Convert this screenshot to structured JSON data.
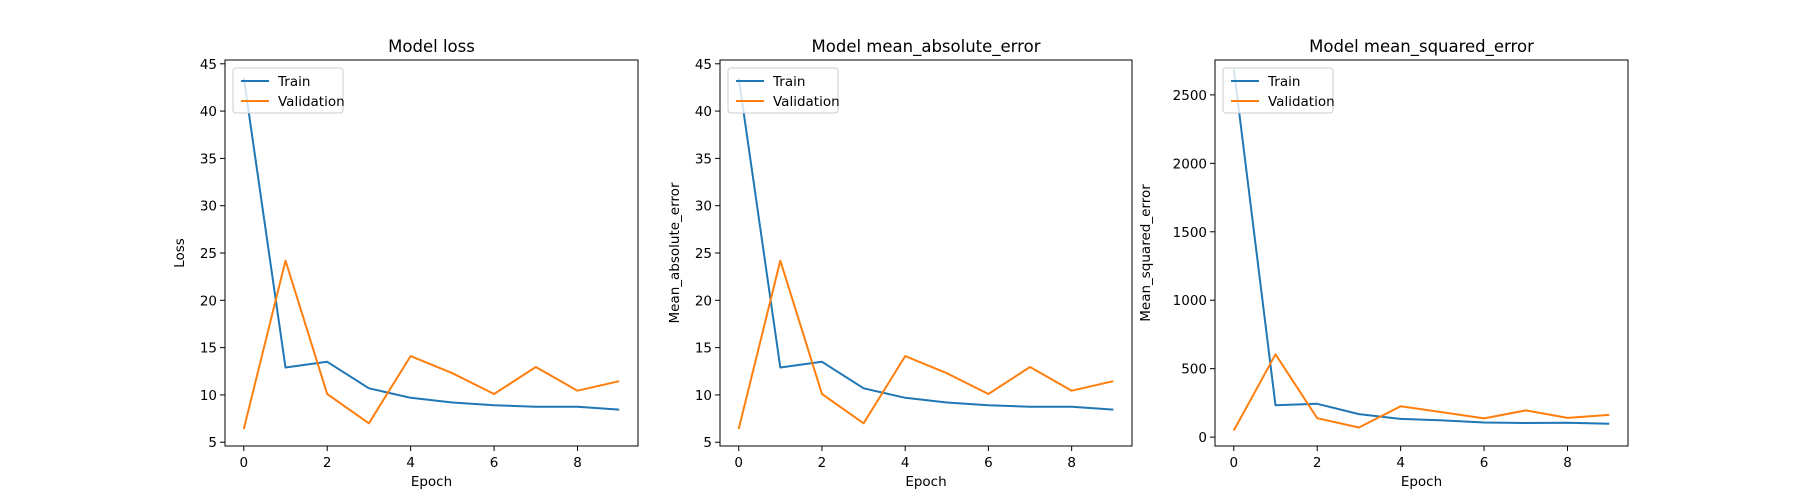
{
  "chart_data": [
    {
      "type": "line",
      "title": "Model loss",
      "xlabel": "Epoch",
      "ylabel": "Loss",
      "xlim": [
        -0.45,
        9.45
      ],
      "ylim": [
        4.6,
        45.4
      ],
      "xticks": [
        0,
        2,
        4,
        6,
        8
      ],
      "yticks": [
        5,
        10,
        15,
        20,
        25,
        30,
        35,
        40,
        45
      ],
      "legend_loc": "upper left",
      "x": [
        0,
        1,
        2,
        3,
        4,
        5,
        6,
        7,
        8,
        9
      ],
      "series": [
        {
          "name": "Train",
          "color": "#1f77b4",
          "values": [
            43.5,
            12.9,
            13.5,
            10.7,
            9.7,
            9.2,
            8.9,
            8.75,
            8.75,
            8.45
          ]
        },
        {
          "name": "Validation",
          "color": "#ff7f0e",
          "values": [
            6.4,
            24.2,
            10.1,
            7.0,
            14.1,
            12.3,
            10.1,
            12.95,
            10.45,
            11.45
          ]
        }
      ]
    },
    {
      "type": "line",
      "title": "Model mean_absolute_error",
      "xlabel": "Epoch",
      "ylabel": "Mean_absolute_error",
      "xlim": [
        -0.45,
        9.45
      ],
      "ylim": [
        4.6,
        45.4
      ],
      "xticks": [
        0,
        2,
        4,
        6,
        8
      ],
      "yticks": [
        5,
        10,
        15,
        20,
        25,
        30,
        35,
        40,
        45
      ],
      "legend_loc": "upper left",
      "x": [
        0,
        1,
        2,
        3,
        4,
        5,
        6,
        7,
        8,
        9
      ],
      "series": [
        {
          "name": "Train",
          "color": "#1f77b4",
          "values": [
            43.5,
            12.9,
            13.5,
            10.7,
            9.7,
            9.2,
            8.9,
            8.75,
            8.75,
            8.45
          ]
        },
        {
          "name": "Validation",
          "color": "#ff7f0e",
          "values": [
            6.4,
            24.2,
            10.1,
            7.0,
            14.1,
            12.3,
            10.1,
            12.95,
            10.45,
            11.45
          ]
        }
      ]
    },
    {
      "type": "line",
      "title": "Model mean_squared_error",
      "xlabel": "Epoch",
      "ylabel": "Mean_squared_error",
      "xlim": [
        -0.45,
        9.45
      ],
      "ylim": [
        -65,
        2755
      ],
      "xticks": [
        0,
        2,
        4,
        6,
        8
      ],
      "yticks": [
        0,
        500,
        1000,
        1500,
        2000,
        2500
      ],
      "legend_loc": "upper left",
      "x": [
        0,
        1,
        2,
        3,
        4,
        5,
        6,
        7,
        8,
        9
      ],
      "series": [
        {
          "name": "Train",
          "color": "#1f77b4",
          "values": [
            2690,
            232,
            243,
            168,
            133,
            122,
            107,
            103,
            105,
            98
          ]
        },
        {
          "name": "Validation",
          "color": "#ff7f0e",
          "values": [
            48,
            605,
            138,
            70,
            225,
            182,
            137,
            195,
            140,
            162
          ]
        }
      ]
    }
  ]
}
